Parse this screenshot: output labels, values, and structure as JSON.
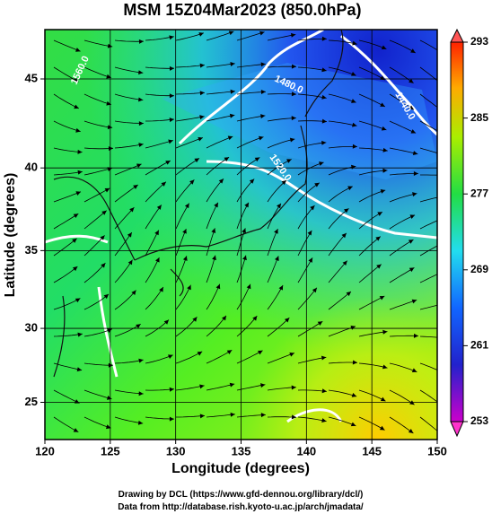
{
  "title": "MSM 15Z04Mar2023 (850.0hPa)",
  "x_axis": {
    "label": "Longitude (degrees)",
    "range": [
      120,
      150
    ],
    "ticks": [
      120,
      125,
      130,
      135,
      140,
      145,
      150
    ]
  },
  "y_axis": {
    "label": "Latitude  (degrees)",
    "range": [
      22.4,
      47.6
    ],
    "ticks": [
      25,
      30,
      35,
      40,
      45
    ]
  },
  "colorbar": {
    "range": [
      253,
      293
    ],
    "ticks": [
      253,
      261,
      269,
      277,
      285,
      293
    ]
  },
  "contour_labels": [
    "1440.0",
    "1480.0",
    "1520.0",
    "1560.0"
  ],
  "credits": [
    "Drawing by DCL (https://www.gfd-dennou.org/library/dcl/)",
    "Data from http://database.rish.kyoto-u.ac.jp/arch/jmadata/"
  ]
}
